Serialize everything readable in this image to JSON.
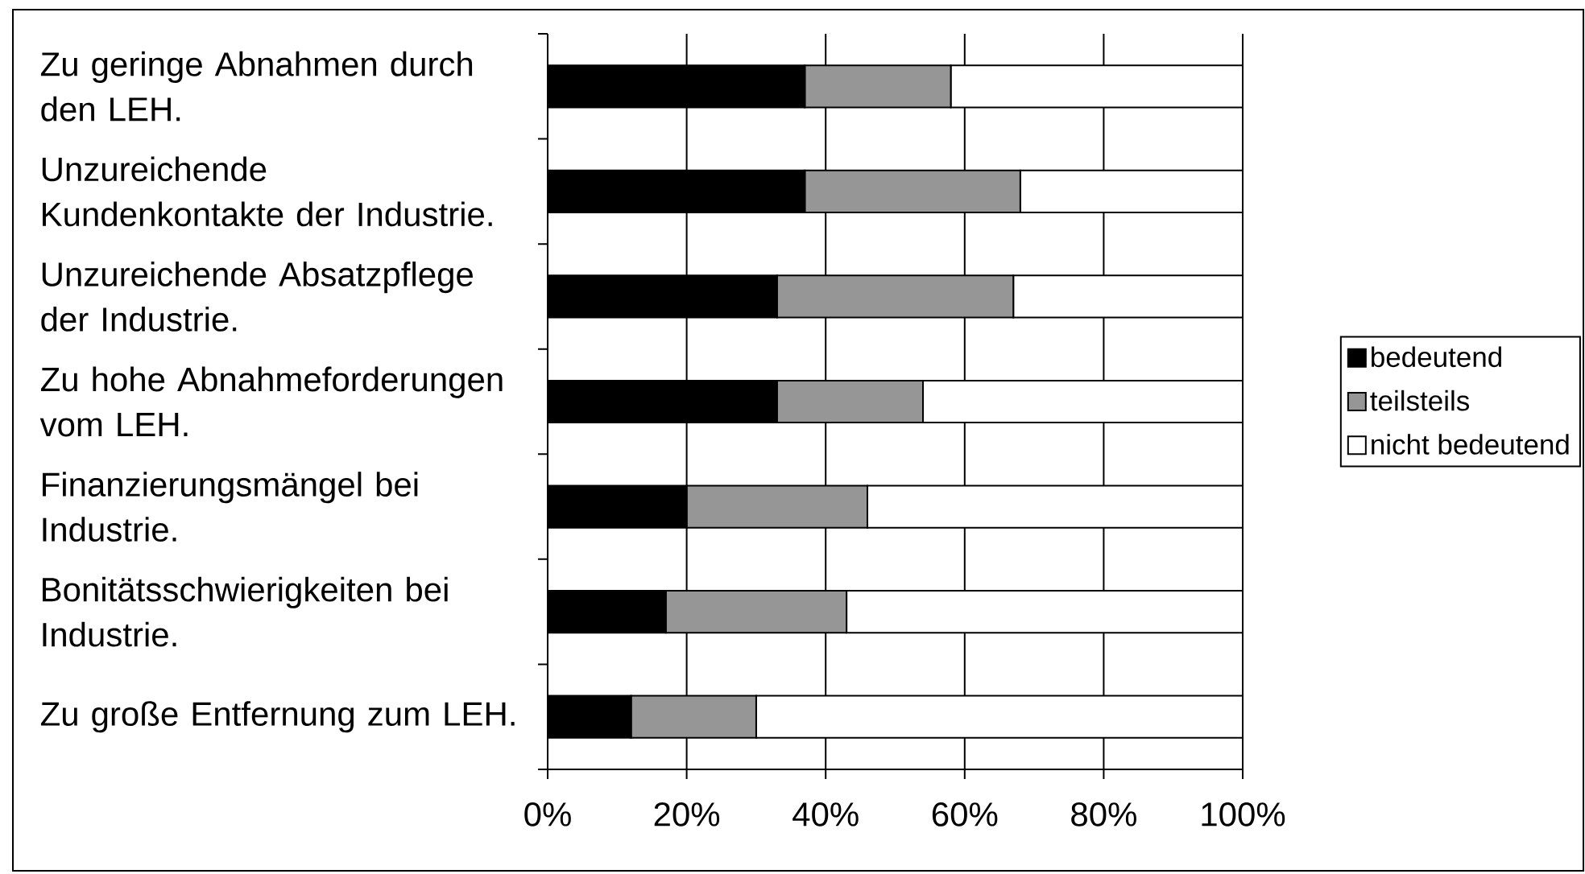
{
  "chart_data": {
    "type": "bar",
    "orientation": "horizontal",
    "stacked": true,
    "categories": [
      "Zu geringe Abnahmen durch den LEH.",
      "Unzureichende Kundenkontakte der Industrie.",
      "Unzureichende Absatzpflege der Industrie.",
      "Zu hohe Abnahmeforderungen vom LEH.",
      "Finanzierungsmängel bei Industrie.",
      "Bonitätsschwierigkeiten bei Industrie.",
      "Zu große Entfernung zum LEH."
    ],
    "series": [
      {
        "name": "bedeutend",
        "color": "#000000",
        "values": [
          37,
          37,
          33,
          33,
          20,
          17,
          12
        ]
      },
      {
        "name": "teilsteils",
        "color": "#969696",
        "values": [
          21,
          31,
          34,
          21,
          26,
          26,
          18
        ]
      },
      {
        "name": "nicht bedeutend",
        "color": "#ffffff",
        "values": [
          42,
          32,
          33,
          46,
          54,
          57,
          70
        ]
      }
    ],
    "xlim": [
      0,
      100
    ],
    "xticks": [
      {
        "value": 0,
        "label": "0%"
      },
      {
        "value": 20,
        "label": "20%"
      },
      {
        "value": 40,
        "label": "40%"
      },
      {
        "value": 60,
        "label": "60%"
      },
      {
        "value": 80,
        "label": "80%"
      },
      {
        "value": 100,
        "label": "100%"
      }
    ],
    "grid": "x",
    "legend": "right"
  }
}
